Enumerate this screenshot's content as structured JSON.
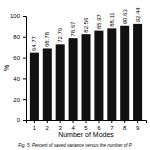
{
  "chart_data": {
    "type": "bar",
    "categories": [
      1,
      2,
      3,
      4,
      5,
      6,
      7,
      8,
      9
    ],
    "values": [
      64.77,
      68.78,
      72.76,
      78.67,
      82.56,
      85.97,
      88.11,
      90.63,
      92.44
    ],
    "color": "#111111",
    "xlabel": "Number of Modes",
    "ylabel": "%",
    "caption": "Fig. 5: Percent of saved variance versus the number of P",
    "ylim": [
      0,
      100
    ],
    "yticks": [
      0,
      20,
      40,
      60,
      80,
      100
    ],
    "data_labels": true,
    "grid": false
  }
}
